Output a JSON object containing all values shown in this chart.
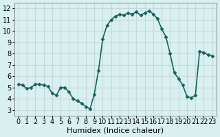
{
  "x": [
    0,
    0.5,
    1,
    1.5,
    2,
    2.5,
    3,
    3.5,
    4,
    4.5,
    5,
    5.5,
    6,
    6.5,
    7,
    7.5,
    8,
    8.5,
    9,
    9.5,
    10,
    10.5,
    11,
    11.5,
    12,
    12.5,
    13,
    13.5,
    14,
    14.5,
    15,
    15.5,
    16,
    16.5,
    17,
    17.5,
    18,
    18.5,
    19,
    19.5,
    20,
    20.5,
    21,
    21.5,
    22,
    22.5,
    23
  ],
  "y": [
    5.3,
    5.2,
    4.9,
    5.0,
    5.3,
    5.3,
    5.2,
    5.1,
    4.5,
    4.3,
    5.0,
    5.0,
    4.6,
    4.0,
    3.8,
    3.6,
    3.3,
    3.1,
    4.4,
    6.5,
    9.3,
    10.5,
    11.0,
    11.3,
    11.5,
    11.4,
    11.6,
    11.5,
    11.7,
    11.4,
    11.6,
    11.8,
    11.5,
    11.1,
    10.2,
    9.5,
    8.0,
    6.3,
    5.8,
    5.2,
    4.2,
    4.1,
    4.3,
    8.2,
    8.1,
    7.9,
    7.8
  ],
  "line_color": "#1a6060",
  "marker_color": "#1a6060",
  "bg_color": "#d8f0f0",
  "grid_color": "#c8d8d8",
  "xlabel": "Humidex (Indice chaleur)",
  "ylabel": "",
  "xlim": [
    -0.5,
    23.5
  ],
  "ylim": [
    2.5,
    12.5
  ],
  "yticks": [
    3,
    4,
    5,
    6,
    7,
    8,
    9,
    10,
    11,
    12
  ],
  "xticks": [
    0,
    1,
    2,
    3,
    4,
    5,
    6,
    7,
    8,
    9,
    10,
    11,
    12,
    13,
    14,
    15,
    16,
    17,
    18,
    19,
    20,
    21,
    22,
    23
  ],
  "title_fontsize": 8,
  "label_fontsize": 8,
  "tick_fontsize": 7,
  "line_width": 1.2,
  "marker_size": 2.5
}
